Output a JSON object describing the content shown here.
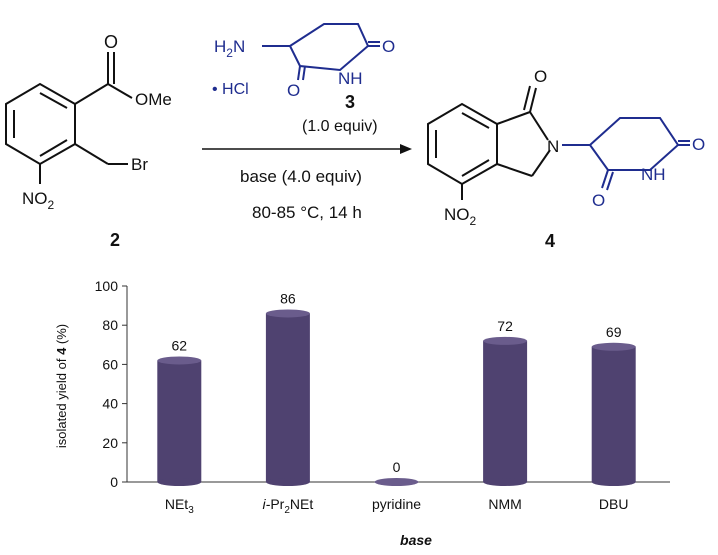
{
  "scheme": {
    "compound2": {
      "ester_label": "OMe",
      "carbonyl_o": "O",
      "halide": "Br",
      "nitro": "NO2",
      "number": "2"
    },
    "reagent3": {
      "amine": "H2N",
      "salt": "• HCl",
      "carbonyl_o_top": "O",
      "imide_nh": "NH",
      "carbonyl_o_bottom": "O",
      "number": "3",
      "equiv": "(1.0 equiv)"
    },
    "conditions": {
      "base": "base (4.0 equiv)",
      "temp_time": "80-85 °C, 14 h"
    },
    "product4": {
      "carbonyl_o": "O",
      "ring_n": "N",
      "imide_o_right": "O",
      "imide_nh": "NH",
      "imide_o_bottom": "O",
      "nitro": "NO2",
      "number": "4"
    },
    "colors": {
      "reagent": "#1f2d8f",
      "text": "#111111"
    }
  },
  "chart_data": {
    "type": "bar",
    "categories": [
      "NEt3",
      "i-Pr2NEt",
      "pyridine",
      "NMM",
      "DBU"
    ],
    "values": [
      62,
      86,
      0,
      72,
      69
    ],
    "xlabel": "base",
    "ylabel": "isolated yield of 4 (%)",
    "ylim": [
      0,
      100
    ],
    "yticks": [
      0,
      20,
      40,
      60,
      80,
      100
    ],
    "grid": false,
    "legend": "none",
    "bar_color": "#4f4270",
    "bar_top_color": "#6a5c8c"
  }
}
